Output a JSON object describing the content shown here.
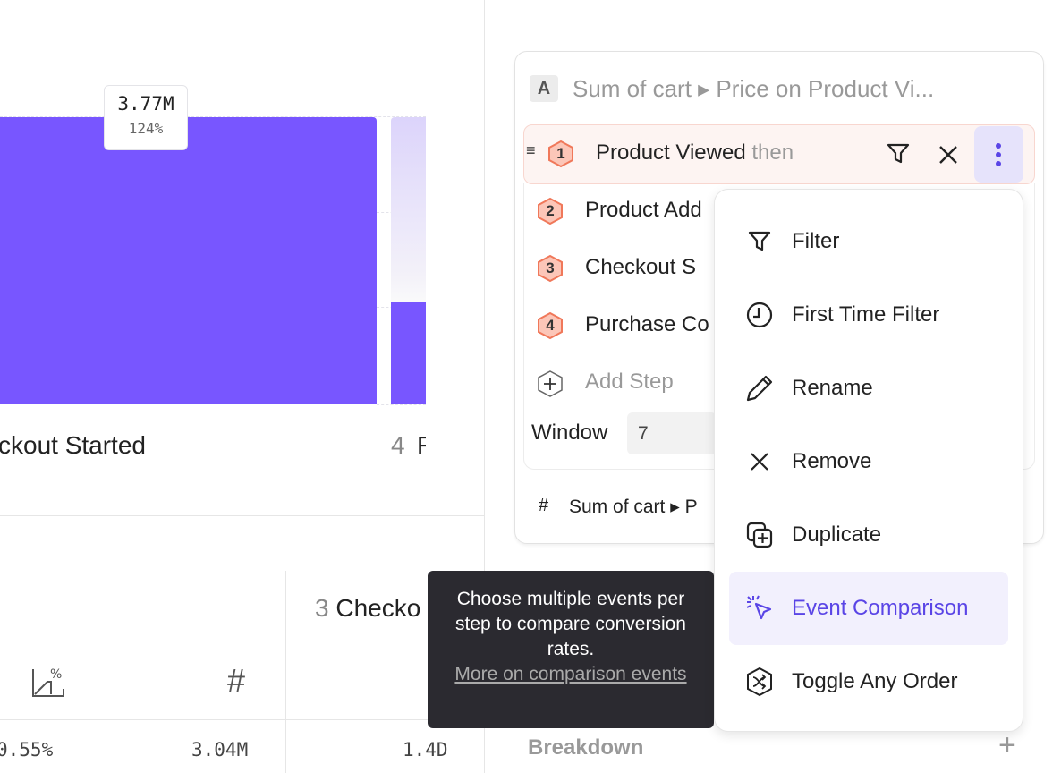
{
  "chart": {
    "tooltip_value": "3.77M",
    "tooltip_percent": "124%",
    "step_label_partial": "ckout Started",
    "next_step_number": "4",
    "next_step_partial": "F",
    "colors": {
      "bar": "#7856ff",
      "bar_faded": "#dcd4fb"
    }
  },
  "table": {
    "header_step_number": "3",
    "header_step_partial": "Checko",
    "col_icons": [
      "conversion-percent-icon",
      "count-hash-icon"
    ],
    "row_values": [
      "0.55%",
      "3.04M",
      "1.4D"
    ]
  },
  "panel": {
    "metric_letter": "A",
    "metric_title": "Sum of cart ▸ Price on Product Vi...",
    "steps": [
      {
        "number": "1",
        "name": "Product Viewed",
        "suffix": "then"
      },
      {
        "number": "2",
        "name": "Product Add"
      },
      {
        "number": "3",
        "name": "Checkout S"
      },
      {
        "number": "4",
        "name": "Purchase Co"
      }
    ],
    "add_step": "Add Step",
    "window_label": "Window",
    "window_value": "7",
    "measure_hash": "#",
    "measure_label": "Sum of cart ▸ P",
    "breakdown_label": "Breakdown",
    "breakdown_add": "+"
  },
  "menu": {
    "items": [
      {
        "label": "Filter",
        "icon": "filter-icon"
      },
      {
        "label": "First Time Filter",
        "icon": "clock-icon"
      },
      {
        "label": "Rename",
        "icon": "pencil-icon"
      },
      {
        "label": "Remove",
        "icon": "x-icon"
      },
      {
        "label": "Duplicate",
        "icon": "duplicate-icon"
      },
      {
        "label": "Event Comparison",
        "icon": "cursor-click-icon",
        "active": true
      },
      {
        "label": "Toggle Any Order",
        "icon": "shuffle-icon"
      }
    ],
    "accent": "#5a45e6"
  },
  "tooltip": {
    "text": "Choose multiple events per step to compare conversion rates.",
    "link": "More on comparison events"
  }
}
